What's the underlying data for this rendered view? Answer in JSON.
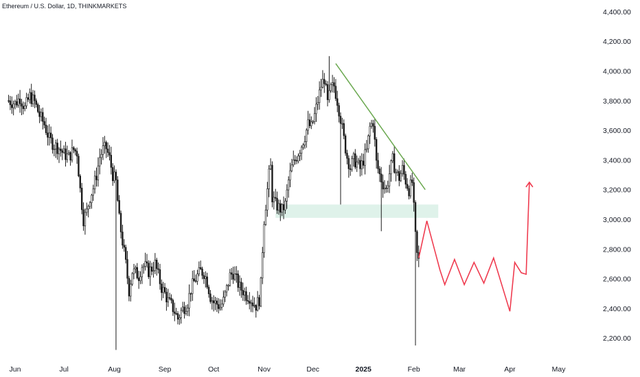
{
  "chart_data": {
    "type": "candlestick",
    "title": "Ethereum / U.S. Dollar, 1D, THINKMARKETS",
    "ylim": [
      2100,
      4450
    ],
    "y_ticks": [
      {
        "value": 4400,
        "label": "4,400.00"
      },
      {
        "value": 4200,
        "label": "4,200.00"
      },
      {
        "value": 4000,
        "label": "4,000.00"
      },
      {
        "value": 3800,
        "label": "3,800.00"
      },
      {
        "value": 3600,
        "label": "3,600.00"
      },
      {
        "value": 3400,
        "label": "3,400.00"
      },
      {
        "value": 3200,
        "label": "3,200.00"
      },
      {
        "value": 3000,
        "label": "3,000.00"
      },
      {
        "value": 2800,
        "label": "2,800.00"
      },
      {
        "value": 2600,
        "label": "2,600.00"
      },
      {
        "value": 2400,
        "label": "2,400.00"
      },
      {
        "value": 2200,
        "label": "2,200.00"
      }
    ],
    "x_ticks": [
      {
        "day": 0,
        "label": "Jun",
        "bold": false
      },
      {
        "day": 30,
        "label": "Jul",
        "bold": false
      },
      {
        "day": 61,
        "label": "Aug",
        "bold": false
      },
      {
        "day": 92,
        "label": "Sep",
        "bold": false
      },
      {
        "day": 122,
        "label": "Oct",
        "bold": false
      },
      {
        "day": 153,
        "label": "Nov",
        "bold": false
      },
      {
        "day": 183,
        "label": "Dec",
        "bold": false
      },
      {
        "day": 214,
        "label": "2025",
        "bold": true
      },
      {
        "day": 245,
        "label": "Feb",
        "bold": false
      },
      {
        "day": 273,
        "label": "Mar",
        "bold": false
      },
      {
        "day": 304,
        "label": "Apr",
        "bold": false
      },
      {
        "day": 334,
        "label": "May",
        "bold": false
      }
    ],
    "close_path": [
      [
        -4,
        3800
      ],
      [
        0,
        3780
      ],
      [
        3,
        3820
      ],
      [
        6,
        3750
      ],
      [
        9,
        3830
      ],
      [
        12,
        3790
      ],
      [
        15,
        3700
      ],
      [
        18,
        3640
      ],
      [
        21,
        3540
      ],
      [
        24,
        3500
      ],
      [
        27,
        3480
      ],
      [
        30,
        3440
      ],
      [
        33,
        3420
      ],
      [
        36,
        3470
      ],
      [
        38,
        3450
      ],
      [
        40,
        3200
      ],
      [
        42,
        3000
      ],
      [
        44,
        3050
      ],
      [
        46,
        3150
      ],
      [
        48,
        3210
      ],
      [
        50,
        3300
      ],
      [
        52,
        3420
      ],
      [
        54,
        3470
      ],
      [
        56,
        3480
      ],
      [
        58,
        3410
      ],
      [
        60,
        3300
      ],
      [
        62,
        3250
      ],
      [
        64,
        3000
      ],
      [
        66,
        2850
      ],
      [
        68,
        2700
      ],
      [
        70,
        2520
      ],
      [
        72,
        2650
      ],
      [
        74,
        2640
      ],
      [
        76,
        2620
      ],
      [
        78,
        2690
      ],
      [
        80,
        2680
      ],
      [
        82,
        2650
      ],
      [
        84,
        2670
      ],
      [
        86,
        2700
      ],
      [
        88,
        2620
      ],
      [
        90,
        2540
      ],
      [
        92,
        2500
      ],
      [
        94,
        2450
      ],
      [
        96,
        2420
      ],
      [
        98,
        2380
      ],
      [
        100,
        2330
      ],
      [
        102,
        2380
      ],
      [
        104,
        2410
      ],
      [
        106,
        2440
      ],
      [
        108,
        2530
      ],
      [
        110,
        2580
      ],
      [
        112,
        2620
      ],
      [
        114,
        2650
      ],
      [
        116,
        2640
      ],
      [
        118,
        2580
      ],
      [
        120,
        2480
      ],
      [
        122,
        2440
      ],
      [
        124,
        2430
      ],
      [
        126,
        2410
      ],
      [
        128,
        2450
      ],
      [
        130,
        2530
      ],
      [
        132,
        2620
      ],
      [
        134,
        2640
      ],
      [
        136,
        2590
      ],
      [
        138,
        2540
      ],
      [
        140,
        2520
      ],
      [
        142,
        2490
      ],
      [
        144,
        2480
      ],
      [
        146,
        2440
      ],
      [
        148,
        2420
      ],
      [
        150,
        2460
      ],
      [
        151,
        2560
      ],
      [
        152,
        2800
      ],
      [
        153,
        3000
      ],
      [
        154,
        3100
      ],
      [
        155,
        3200
      ],
      [
        156,
        3300
      ],
      [
        157,
        3350
      ],
      [
        158,
        3150
      ],
      [
        160,
        3100
      ],
      [
        162,
        3080
      ],
      [
        164,
        3060
      ],
      [
        166,
        3100
      ],
      [
        168,
        3260
      ],
      [
        170,
        3350
      ],
      [
        172,
        3400
      ],
      [
        174,
        3450
      ],
      [
        176,
        3500
      ],
      [
        178,
        3560
      ],
      [
        180,
        3640
      ],
      [
        182,
        3620
      ],
      [
        184,
        3700
      ],
      [
        186,
        3800
      ],
      [
        188,
        3900
      ],
      [
        190,
        3950
      ],
      [
        192,
        3780
      ],
      [
        194,
        3880
      ],
      [
        196,
        3900
      ],
      [
        198,
        3800
      ],
      [
        200,
        3680
      ],
      [
        202,
        3540
      ],
      [
        204,
        3420
      ],
      [
        206,
        3350
      ],
      [
        208,
        3400
      ],
      [
        210,
        3380
      ],
      [
        212,
        3340
      ],
      [
        214,
        3400
      ],
      [
        216,
        3460
      ],
      [
        218,
        3620
      ],
      [
        220,
        3660
      ],
      [
        222,
        3380
      ],
      [
        224,
        3300
      ],
      [
        226,
        3240
      ],
      [
        228,
        3200
      ],
      [
        230,
        3310
      ],
      [
        232,
        3400
      ],
      [
        234,
        3320
      ],
      [
        236,
        3280
      ],
      [
        238,
        3340
      ],
      [
        240,
        3260
      ],
      [
        242,
        3200
      ],
      [
        244,
        3250
      ],
      [
        245,
        3070
      ],
      [
        246,
        2880
      ],
      [
        247,
        2760
      ],
      [
        248,
        2720
      ]
    ],
    "annotations": [
      {
        "type": "trendline",
        "color": "#6aa84f",
        "points": [
          [
            197,
            4050
          ],
          [
            252,
            3200
          ]
        ]
      },
      {
        "type": "zone",
        "color": "#dff2ea",
        "x_range": [
          160,
          260
        ],
        "y_range": [
          3010,
          3100
        ]
      },
      {
        "type": "projection",
        "color": "#ef3b4f",
        "points": [
          [
            248,
            2740
          ],
          [
            253,
            2990
          ],
          [
            261,
            2660
          ],
          [
            264,
            2560
          ],
          [
            270,
            2730
          ],
          [
            276,
            2560
          ],
          [
            282,
            2710
          ],
          [
            288,
            2570
          ],
          [
            294,
            2740
          ],
          [
            304,
            2380
          ],
          [
            307,
            2710
          ],
          [
            311,
            2640
          ],
          [
            314,
            2630
          ],
          [
            316,
            3250
          ]
        ]
      }
    ]
  },
  "colors": {
    "candle": "#1a1a1a",
    "background": "#ffffff",
    "text": "#131722"
  }
}
